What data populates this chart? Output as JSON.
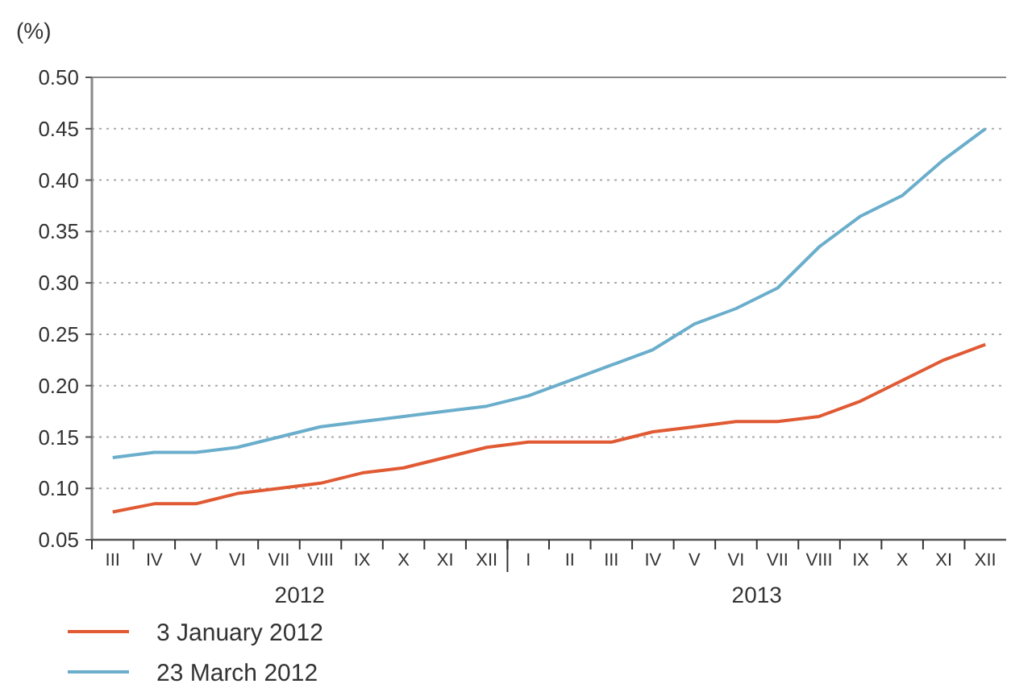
{
  "chart_data": {
    "type": "line",
    "ylabel": "(%)",
    "categories": [
      "III",
      "IV",
      "V",
      "VI",
      "VII",
      "VIII",
      "IX",
      "X",
      "XI",
      "XII",
      "I",
      "II",
      "III",
      "IV",
      "V",
      "VI",
      "VII",
      "VIII",
      "IX",
      "X",
      "XI",
      "XII"
    ],
    "series": [
      {
        "name": "3 January 2012",
        "color": "#e05a33",
        "values": [
          0.077,
          0.085,
          0.085,
          0.095,
          0.1,
          0.105,
          0.115,
          0.12,
          0.13,
          0.14,
          0.145,
          0.145,
          0.145,
          0.155,
          0.16,
          0.165,
          0.165,
          0.17,
          0.185,
          0.205,
          0.225,
          0.24
        ]
      },
      {
        "name": "23 March 2012",
        "color": "#6aaecb",
        "values": [
          0.13,
          0.135,
          0.135,
          0.14,
          0.15,
          0.16,
          0.165,
          0.17,
          0.175,
          0.18,
          0.19,
          0.205,
          0.22,
          0.235,
          0.26,
          0.275,
          0.295,
          0.335,
          0.365,
          0.385,
          0.42,
          0.45
        ]
      }
    ],
    "ylim": [
      0.05,
      0.5
    ],
    "yticks": [
      {
        "value": 0.05,
        "label": "0.05"
      },
      {
        "value": 0.1,
        "label": "0.10"
      },
      {
        "value": 0.15,
        "label": "0.15"
      },
      {
        "value": 0.2,
        "label": "0.20"
      },
      {
        "value": 0.25,
        "label": "0.25"
      },
      {
        "value": 0.3,
        "label": "0.30"
      },
      {
        "value": 0.35,
        "label": "0.35"
      },
      {
        "value": 0.4,
        "label": "0.40"
      },
      {
        "value": 0.45,
        "label": "0.45"
      },
      {
        "value": 0.5,
        "label": "0.50"
      }
    ],
    "grid": "y",
    "legend": "bottom left",
    "marker": "none",
    "line_style": "solid",
    "annotations": [
      "2012",
      "2013"
    ]
  }
}
